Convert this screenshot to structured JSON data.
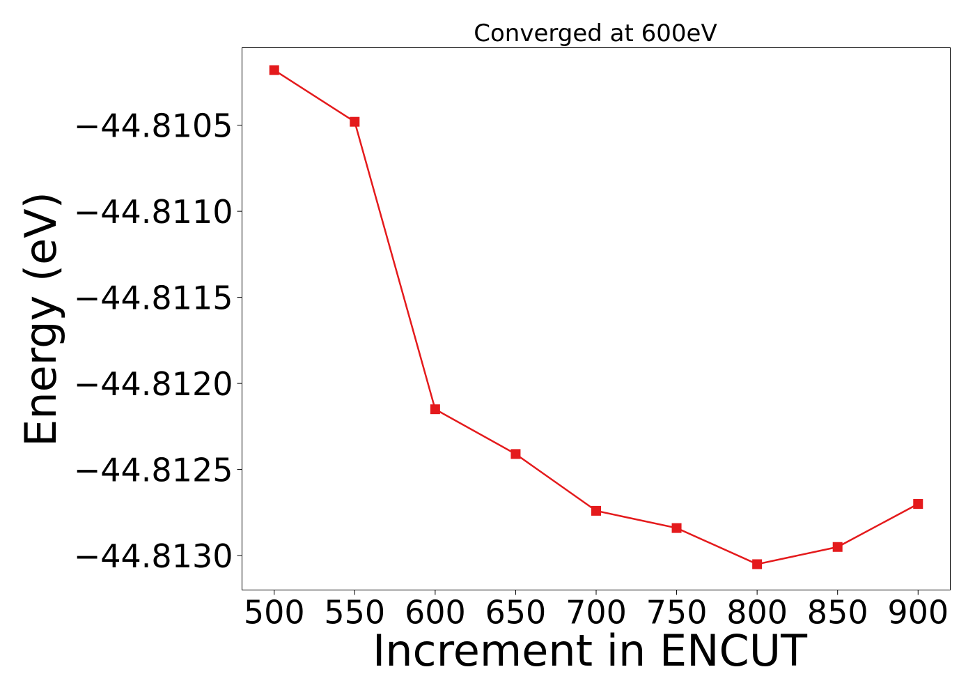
{
  "chart_data": {
    "type": "line",
    "title": "Converged at 600eV",
    "xlabel": "Increment in ENCUT",
    "ylabel": "Energy (eV)",
    "x": [
      500,
      550,
      600,
      650,
      700,
      750,
      800,
      850,
      900
    ],
    "series": [
      {
        "values": [
          -44.81018,
          -44.81048,
          -44.81215,
          -44.81241,
          -44.81274,
          -44.81284,
          -44.81305,
          -44.81295,
          -44.8127
        ],
        "color": "#e41a1c",
        "marker": "square"
      }
    ],
    "xticks": [
      500,
      550,
      600,
      650,
      700,
      750,
      800,
      850,
      900
    ],
    "xtick_labels": [
      "500",
      "550",
      "600",
      "650",
      "700",
      "750",
      "800",
      "850",
      "900"
    ],
    "yticks": [
      -44.8105,
      -44.811,
      -44.8115,
      -44.812,
      -44.8125,
      -44.813
    ],
    "ytick_labels": [
      "−44.8105",
      "−44.8110",
      "−44.8115",
      "−44.8120",
      "−44.8125",
      "−44.8130"
    ],
    "xlim": [
      480,
      920
    ],
    "ylim": [
      -44.8132,
      -44.81005
    ],
    "grid": false,
    "legend": "none"
  }
}
